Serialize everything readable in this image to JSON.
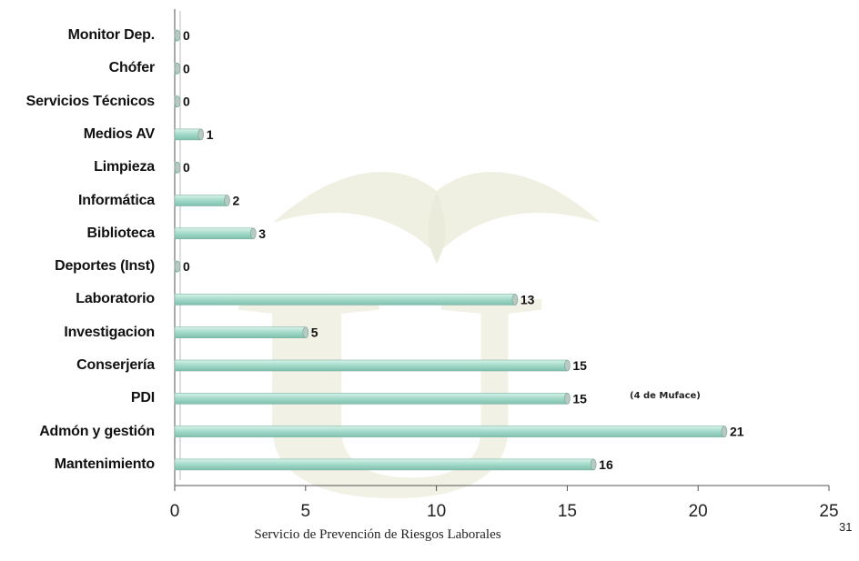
{
  "chart_data": {
    "type": "bar",
    "orientation": "horizontal",
    "categories": [
      "Monitor Dep.",
      "Chófer",
      "Servicios Técnicos",
      "Medios AV",
      "Limpieza",
      "Informática",
      "Biblioteca",
      "Deportes (Inst)",
      "Laboratorio",
      "Investigacion",
      "Conserjería",
      "PDI",
      "Admón y gestión",
      "Mantenimiento"
    ],
    "values": [
      0,
      0,
      0,
      1,
      0,
      2,
      3,
      0,
      13,
      5,
      15,
      15,
      21,
      16
    ],
    "xticks": [
      0,
      5,
      10,
      15,
      20,
      25
    ],
    "xlim": [
      0,
      25
    ],
    "grid": false,
    "bar_color": "#a6dccb",
    "annotation": "(4 de Muface)"
  },
  "footer": "Servicio de Prevención de Riesgos Laborales",
  "page_number": "31"
}
